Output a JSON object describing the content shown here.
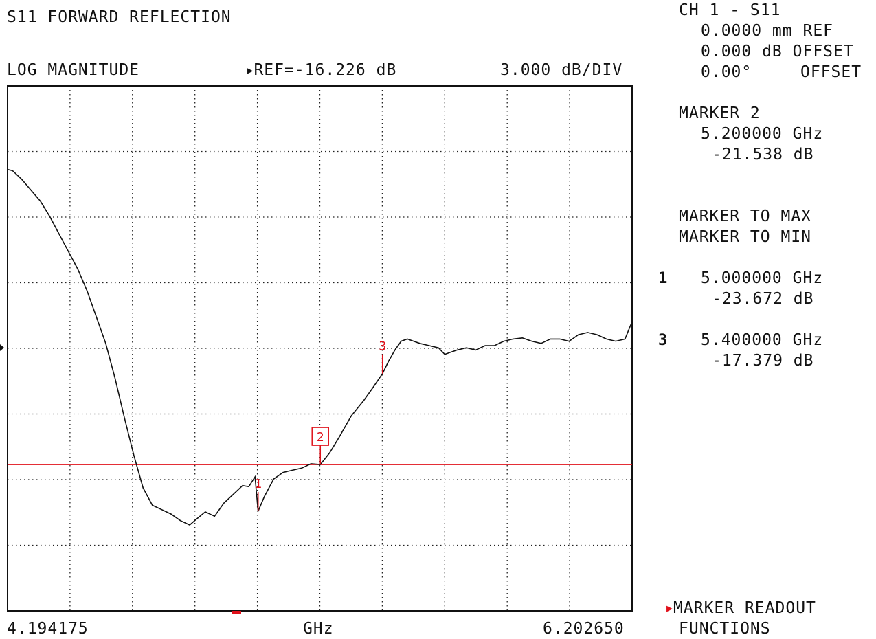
{
  "header": {
    "title": "S11 FORWARD REFLECTION",
    "format": "LOG MAGNITUDE",
    "ref": "REF=-16.226 dB",
    "scale": "3.000 dB/DIV"
  },
  "footer": {
    "start": "4.194175",
    "unit": "GHz",
    "stop": "6.202650"
  },
  "side_panel": {
    "channel": "CH 1 - S11",
    "ref_plane": "0.0000 mm REF",
    "mag_offset": "0.000 dB OFFSET",
    "phase_offset_value": "0.00°",
    "phase_offset_label": "OFFSET",
    "active_marker_title": "MARKER 2",
    "active_marker_freq": "5.200000 GHz",
    "active_marker_val": "-21.538 dB",
    "menu_max": "MARKER TO MAX",
    "menu_min": "MARKER TO MIN",
    "marker1_num": "1",
    "marker1_freq": "5.000000 GHz",
    "marker1_val": "-23.672 dB",
    "marker3_num": "3",
    "marker3_freq": "5.400000 GHz",
    "marker3_val": "-17.379 dB",
    "readout_line1": "MARKER READOUT",
    "readout_line2": "FUNCTIONS"
  },
  "colors": {
    "trace": "#111111",
    "marker": "#e0101a",
    "grid": "#222222"
  },
  "chart_data": {
    "type": "line",
    "title": "S11 FORWARD REFLECTION",
    "xlabel": "GHz",
    "ylabel": "",
    "xlim": [
      4.194175,
      6.20265
    ],
    "ylim": [
      -28.226,
      -4.226
    ],
    "ref_level": -16.226,
    "db_per_div": 3.0,
    "grid": true,
    "limit_line": -21.538,
    "series": [
      {
        "x": [
          4.194175,
          4.21,
          4.24,
          4.27,
          4.3,
          4.33,
          4.36,
          4.39,
          4.42,
          4.45,
          4.48,
          4.51,
          4.54,
          4.57,
          4.6,
          4.63,
          4.66,
          4.69,
          4.72,
          4.75,
          4.78,
          4.8,
          4.83,
          4.86,
          4.89,
          4.92,
          4.95,
          4.97,
          4.99,
          5.0,
          5.02,
          5.05,
          5.08,
          5.11,
          5.14,
          5.17,
          5.2,
          5.23,
          5.26,
          5.3,
          5.34,
          5.37,
          5.4,
          5.42,
          5.44,
          5.46,
          5.48,
          5.5,
          5.52,
          5.55,
          5.58,
          5.6,
          5.62,
          5.64,
          5.67,
          5.7,
          5.73,
          5.76,
          5.79,
          5.82,
          5.85,
          5.88,
          5.91,
          5.94,
          5.97,
          6.0,
          6.03,
          6.06,
          6.09,
          6.12,
          6.15,
          6.18,
          6.20265
        ],
        "y": [
          -8.05,
          -8.1,
          -8.5,
          -9.0,
          -9.5,
          -10.2,
          -11.0,
          -11.8,
          -12.6,
          -13.6,
          -14.8,
          -16.0,
          -17.6,
          -19.4,
          -21.1,
          -22.6,
          -23.4,
          -23.6,
          -23.8,
          -24.1,
          -24.3,
          -24.05,
          -23.7,
          -23.9,
          -23.3,
          -22.9,
          -22.5,
          -22.55,
          -22.1,
          -23.672,
          -23.0,
          -22.2,
          -21.9,
          -21.8,
          -21.7,
          -21.5,
          -21.538,
          -21.0,
          -20.3,
          -19.3,
          -18.6,
          -18.0,
          -17.379,
          -16.8,
          -16.3,
          -15.9,
          -15.8,
          -15.9,
          -16.0,
          -16.1,
          -16.2,
          -16.5,
          -16.4,
          -16.3,
          -16.2,
          -16.3,
          -16.1,
          -16.1,
          -15.9,
          -15.8,
          -15.75,
          -15.9,
          -16.0,
          -15.8,
          -15.8,
          -15.9,
          -15.6,
          -15.5,
          -15.6,
          -15.8,
          -15.9,
          -15.8,
          -15.0
        ]
      }
    ],
    "markers": [
      {
        "label": "1",
        "x": 5.0,
        "y": -23.672
      },
      {
        "label": "2",
        "x": 5.2,
        "y": -21.538
      },
      {
        "label": "3",
        "x": 5.4,
        "y": -17.379
      }
    ]
  }
}
